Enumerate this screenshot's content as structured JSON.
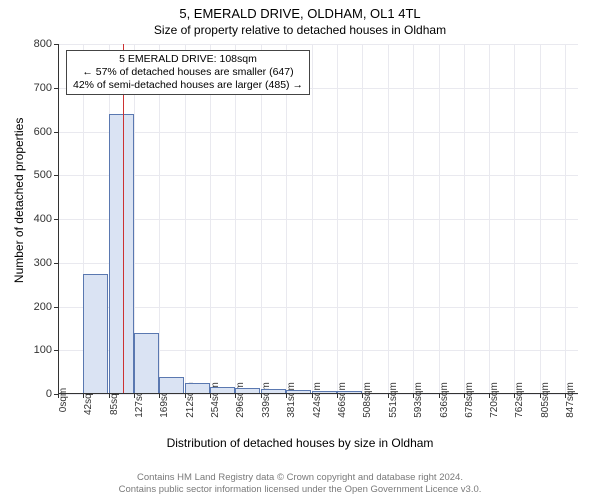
{
  "title": "5, EMERALD DRIVE, OLDHAM, OL1 4TL",
  "subtitle": "Size of property relative to detached houses in Oldham",
  "ylabel": "Number of detached properties",
  "xlabel": "Distribution of detached houses by size in Oldham",
  "chart": {
    "type": "histogram",
    "background_color": "#ffffff",
    "grid_color": "#e9e9ef",
    "axis_color": "#333333",
    "bar_fill": "#dae3f3",
    "bar_border": "#5a78b0",
    "marker_color": "#cc3232",
    "xlim": [
      0,
      868
    ],
    "ylim": [
      0,
      800
    ],
    "yticks": [
      0,
      100,
      200,
      300,
      400,
      500,
      600,
      700,
      800
    ],
    "xticks": [
      0,
      42,
      85,
      127,
      169,
      212,
      254,
      296,
      339,
      381,
      424,
      466,
      508,
      551,
      593,
      636,
      678,
      720,
      762,
      805,
      847
    ],
    "xtick_unit": "sqm",
    "bin_width": 42,
    "values": [
      0,
      275,
      640,
      140,
      40,
      25,
      15,
      14,
      12,
      10,
      8,
      6,
      0,
      0,
      0,
      0,
      0,
      0,
      0,
      0
    ],
    "marker_x": 108
  },
  "info": {
    "line1": "5 EMERALD DRIVE: 108sqm",
    "line2": "← 57% of detached houses are smaller (647)",
    "line3": "42% of semi-detached houses are larger (485) →"
  },
  "footer": {
    "line1": "Contains HM Land Registry data © Crown copyright and database right 2024.",
    "line2": "Contains public sector information licensed under the Open Government Licence v3.0."
  }
}
